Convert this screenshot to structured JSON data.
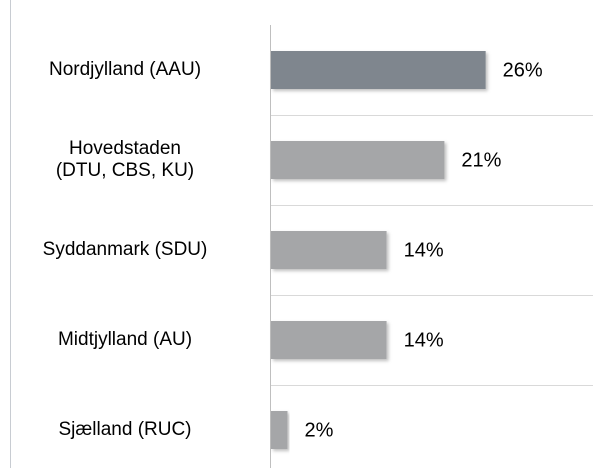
{
  "chart_data": {
    "type": "bar",
    "orientation": "horizontal",
    "categories": [
      "Nordjylland (AAU)",
      "Hovedstaden\n(DTU, CBS, KU)",
      "Syddanmark (SDU)",
      "Midtjylland (AU)",
      "Sjælland (RUC)"
    ],
    "values": [
      26,
      21,
      14,
      14,
      2
    ],
    "value_labels": [
      "26%",
      "21%",
      "14%",
      "14%",
      "2%"
    ],
    "colors": [
      "#7f868e",
      "#a5a6a8",
      "#a5a6a8",
      "#a5a6a8",
      "#a5a6a8"
    ],
    "xlim": [
      0,
      39
    ]
  }
}
